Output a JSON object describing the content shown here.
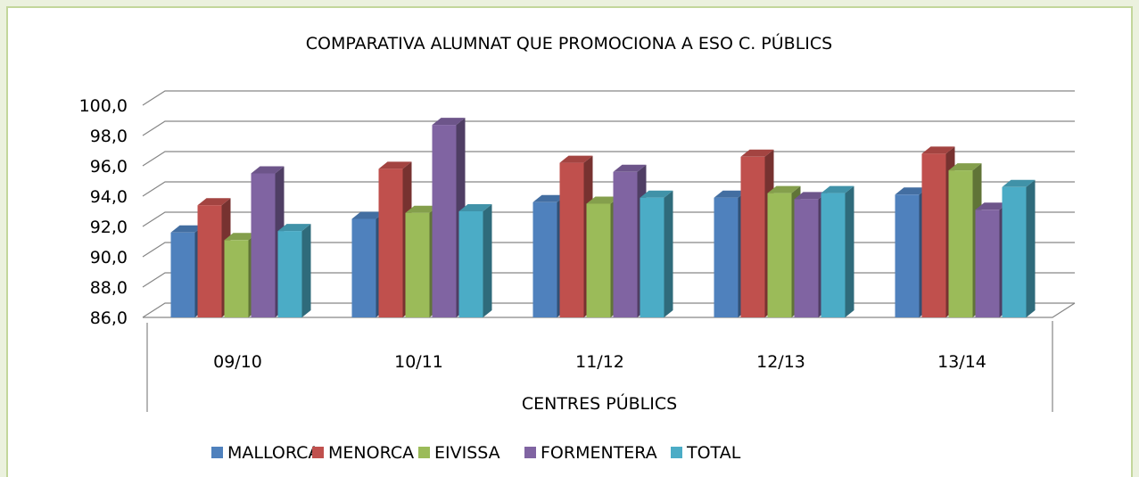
{
  "chart_data": {
    "type": "bar3d",
    "title": "COMPARATIVA ALUMNAT QUE PROMOCIONA A ESO C. PÚBLICS",
    "x_label": "CENTRES PÚBLICS",
    "categories": [
      "09/10",
      "10/11",
      "11/12",
      "12/13",
      "13/14"
    ],
    "series": [
      {
        "name": "MALLORCA",
        "color": "#4f81bd",
        "values": [
          91.6,
          92.5,
          93.6,
          93.9,
          94.1
        ]
      },
      {
        "name": "MENORCA",
        "color": "#c0504d",
        "values": [
          93.4,
          95.8,
          96.2,
          96.6,
          96.8
        ]
      },
      {
        "name": "EIVISSA",
        "color": "#9bbb59",
        "values": [
          91.1,
          92.9,
          93.5,
          94.2,
          95.7
        ]
      },
      {
        "name": "FORMENTERA",
        "color": "#8064a2",
        "values": [
          95.5,
          98.7,
          95.6,
          93.8,
          93.1
        ]
      },
      {
        "name": "TOTAL",
        "color": "#4bacc6",
        "values": [
          91.7,
          93.0,
          93.9,
          94.2,
          94.6
        ]
      }
    ],
    "ylim": [
      86,
      100
    ],
    "yticks": [
      {
        "value": 86,
        "label": "86,0"
      },
      {
        "value": 88,
        "label": "88,0"
      },
      {
        "value": 90,
        "label": "90,0"
      },
      {
        "value": 92,
        "label": "92,0"
      },
      {
        "value": 94,
        "label": "94,0"
      },
      {
        "value": 96,
        "label": "96,0"
      },
      {
        "value": 98,
        "label": "98,0"
      },
      {
        "value": 100,
        "label": "100,0"
      }
    ],
    "grid": true,
    "legend": "bottom"
  }
}
